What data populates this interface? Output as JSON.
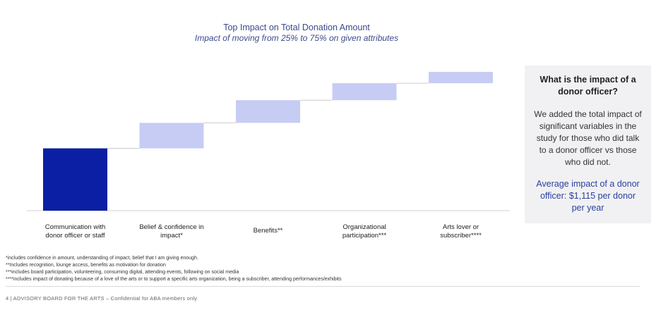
{
  "chart_data": {
    "type": "waterfall",
    "title": "Top Impact on Total Donation Amount",
    "subtitle": "Impact of moving from 25% to 75% on given attributes",
    "categories": [
      "Communication with donor officer or staff",
      "Belief & confidence in impact*",
      "Benefits**",
      "Organizational participation***",
      "Arts lover or subscriber****"
    ],
    "category_lines": [
      [
        "Communication with",
        "donor officer or staff"
      ],
      [
        "Belief & confidence in",
        "impact*"
      ],
      [
        "Benefits**"
      ],
      [
        "Organizational",
        "participation***"
      ],
      [
        "Arts lover or",
        "subscriber****"
      ]
    ],
    "values": [
      44,
      18,
      16,
      12,
      8
    ],
    "ylim": [
      0,
      100
    ],
    "grid": false,
    "colors": {
      "highlight": "#0a1fa3",
      "increment": "#c7ccf5",
      "connector": "#cccccc",
      "axis": "#d0d0d0"
    }
  },
  "side_panel": {
    "heading": "What is the impact of a donor officer?",
    "body": "We added the total impact of significant variables in the study for those who did talk to a donor officer vs those who did not.",
    "highlight": "Average impact of a donor officer:  $1,115 per donor per year"
  },
  "footnotes": [
    "*includes confidence in amount, understanding of impact, belief that I am giving enough.",
    "**Includes recognition, lounge access, benefits as motivation for donation",
    "***includes board participation, volunteering, consuming digital, attending events, following on social media",
    "****includes impact of donating because of a love of the arts or to support a specific arts organization, being a subscriber, attending performances/exhibits"
  ],
  "footer": {
    "text": "4  |  ADVISORY BOARD FOR THE ARTS  –  Confidential for ABA members only"
  }
}
